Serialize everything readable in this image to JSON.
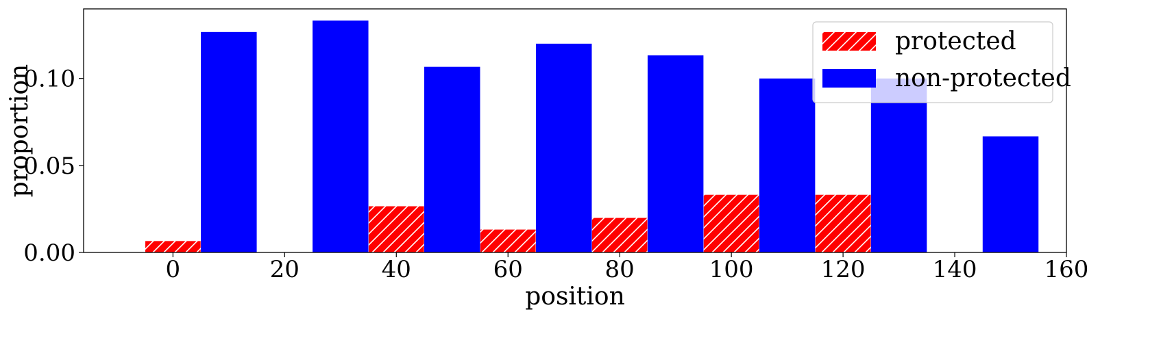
{
  "chart_data": {
    "type": "bar",
    "title": "",
    "xlabel": "position",
    "ylabel": "proportion",
    "xlim": [
      -16,
      160
    ],
    "ylim": [
      0,
      0.14
    ],
    "xticks": [
      0,
      20,
      40,
      60,
      80,
      100,
      120,
      140,
      160
    ],
    "xtick_labels": [
      "0",
      "20",
      "40",
      "60",
      "80",
      "100",
      "120",
      "140",
      "160"
    ],
    "yticks": [
      0.0,
      0.05,
      0.1
    ],
    "ytick_labels": [
      "0.00",
      "0.05",
      "0.10"
    ],
    "grid": false,
    "legend_position": "upper-right",
    "series": [
      {
        "name": "protected",
        "color": "#ff0000",
        "hatch": "diagonal",
        "x": [
          0,
          20,
          40,
          60,
          80,
          100,
          120,
          140
        ],
        "values": [
          0.0067,
          0.0,
          0.0267,
          0.0133,
          0.02,
          0.0333,
          0.0333,
          0.0
        ]
      },
      {
        "name": "non-protected",
        "color": "#0000ff",
        "hatch": "none",
        "x": [
          10,
          30,
          50,
          70,
          90,
          110,
          130,
          150
        ],
        "values": [
          0.1267,
          0.1333,
          0.1067,
          0.12,
          0.1133,
          0.1,
          0.1,
          0.0667
        ]
      }
    ]
  }
}
